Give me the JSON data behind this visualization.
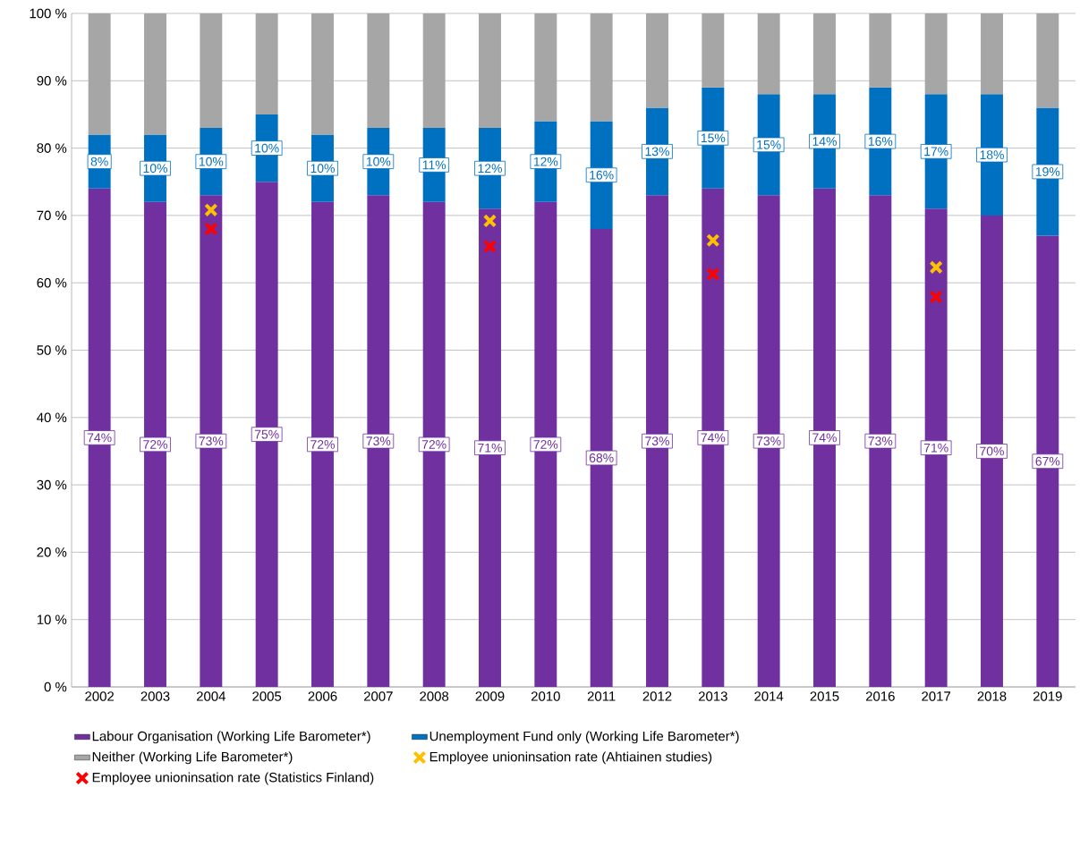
{
  "chart_data": {
    "type": "bar",
    "stacked": true,
    "grid": "y",
    "legend": "bottom",
    "categories": [
      "2002",
      "2003",
      "2004",
      "2005",
      "2006",
      "2007",
      "2008",
      "2009",
      "2010",
      "2011",
      "2012",
      "2013",
      "2014",
      "2015",
      "2016",
      "2017",
      "2018",
      "2019"
    ],
    "ylim": [
      0,
      100
    ],
    "yticks": [
      {
        "value": 0,
        "label": "0 %"
      },
      {
        "value": 10,
        "label": "10 %"
      },
      {
        "value": 20,
        "label": "20 %"
      },
      {
        "value": 30,
        "label": "30 %"
      },
      {
        "value": 40,
        "label": "40 %"
      },
      {
        "value": 50,
        "label": "50 %"
      },
      {
        "value": 60,
        "label": "60 %"
      },
      {
        "value": 70,
        "label": "70 %"
      },
      {
        "value": 80,
        "label": "80 %"
      },
      {
        "value": 90,
        "label": "90 %"
      },
      {
        "value": 100,
        "label": "100 %"
      }
    ],
    "series": [
      {
        "name": "Labour Organisation (Working Life Barometer*)",
        "color": "#7030a0",
        "values": [
          74,
          72,
          73,
          75,
          72,
          73,
          72,
          71,
          72,
          68,
          73,
          74,
          73,
          74,
          73,
          71,
          70,
          67
        ],
        "value_labels": [
          "74%",
          "72%",
          "73%",
          "75%",
          "72%",
          "73%",
          "72%",
          "71%",
          "72%",
          "68%",
          "73%",
          "74%",
          "73%",
          "74%",
          "73%",
          "71%",
          "70%",
          "67%"
        ]
      },
      {
        "name": "Unemployment Fund only (Working Life Barometer*)",
        "color": "#0070c0",
        "values": [
          8,
          10,
          10,
          10,
          10,
          10,
          11,
          12,
          12,
          16,
          13,
          15,
          15,
          14,
          16,
          17,
          18,
          19
        ],
        "value_labels": [
          "8%",
          "10%",
          "10%",
          "10%",
          "10%",
          "10%",
          "11%",
          "12%",
          "12%",
          "16%",
          "13%",
          "15%",
          "15%",
          "14%",
          "16%",
          "17%",
          "18%",
          "19%"
        ]
      },
      {
        "name": "Neither (Working Life Barometer*)",
        "color": "#a6a6a6",
        "values": [
          18,
          18,
          17,
          15,
          18,
          17,
          17,
          17,
          16,
          16,
          14,
          11,
          12,
          12,
          11,
          12,
          12,
          14
        ]
      },
      {
        "name": "Employee unioninsation rate (Ahtiainen studies)",
        "type": "scatter",
        "marker": "cross",
        "color": "#ffc000",
        "values": [
          null,
          null,
          70.8,
          null,
          null,
          null,
          null,
          69.2,
          null,
          null,
          null,
          66.3,
          null,
          null,
          null,
          62.3,
          null,
          null
        ]
      },
      {
        "name": "Employee unioninsation rate (Statistics Finland)",
        "type": "scatter",
        "marker": "cross",
        "color": "#ff0000",
        "values": [
          null,
          null,
          68,
          null,
          null,
          null,
          null,
          65.4,
          null,
          null,
          null,
          61.3,
          null,
          null,
          null,
          57.9,
          null,
          null
        ]
      }
    ]
  }
}
